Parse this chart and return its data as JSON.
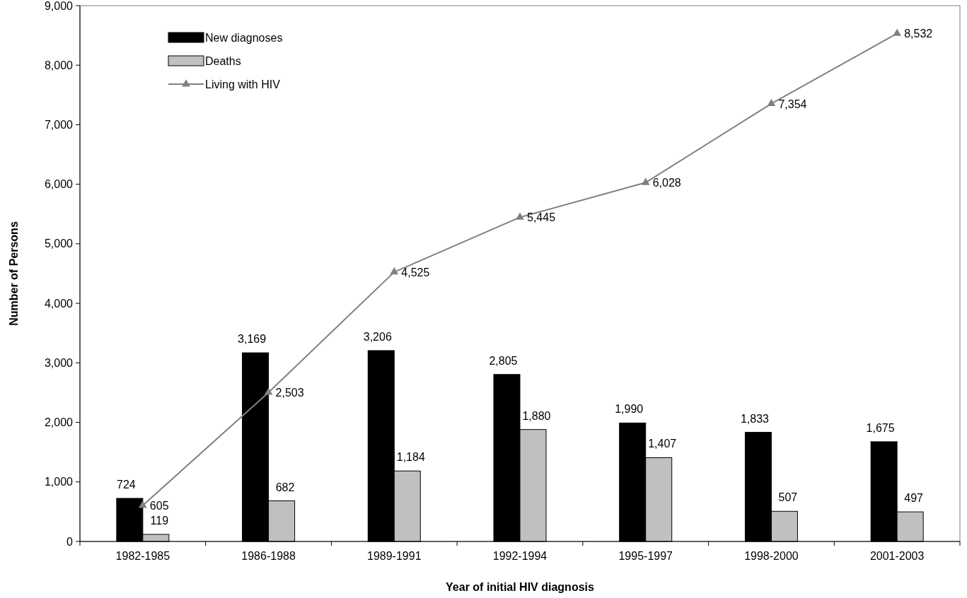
{
  "chart_data": {
    "type": "bar",
    "xlabel": "Year of initial HIV diagnosis",
    "ylabel": "Number of Persons",
    "categories": [
      "1982-1985",
      "1986-1988",
      "1989-1991",
      "1992-1994",
      "1995-1997",
      "1998-2000",
      "2001-2003"
    ],
    "series": [
      {
        "name": "New diagnoses",
        "color": "#000000",
        "values": [
          724,
          3169,
          3206,
          2805,
          1990,
          1833,
          1675
        ],
        "value_labels": [
          "724",
          "3,169",
          "3,206",
          "2,805",
          "1,990",
          "1,833",
          "1,675"
        ]
      },
      {
        "name": "Deaths",
        "color": "#c0c0c0",
        "values": [
          119,
          682,
          1184,
          1880,
          1407,
          507,
          497
        ],
        "value_labels": [
          "119",
          "682",
          "1,184",
          "1,880",
          "1,407",
          "507",
          "497"
        ]
      },
      {
        "name": "Living with HIV",
        "type": "line",
        "color": "#808080",
        "marker": "triangle",
        "values": [
          605,
          2503,
          4525,
          5445,
          6028,
          7354,
          8532
        ],
        "value_labels": [
          "605",
          "2,503",
          "4,525",
          "5,445",
          "6,028",
          "7,354",
          "8,532"
        ]
      }
    ],
    "ylim": [
      0,
      9000
    ],
    "yticks": [
      {
        "value": 0,
        "label": "0"
      },
      {
        "value": 1000,
        "label": "1,000"
      },
      {
        "value": 2000,
        "label": "2,000"
      },
      {
        "value": 3000,
        "label": "3,000"
      },
      {
        "value": 4000,
        "label": "4,000"
      },
      {
        "value": 5000,
        "label": "5,000"
      },
      {
        "value": 6000,
        "label": "6,000"
      },
      {
        "value": 7000,
        "label": "7,000"
      },
      {
        "value": 8000,
        "label": "8,000"
      },
      {
        "value": 9000,
        "label": "9,000"
      }
    ],
    "legend": "top left",
    "grid": false
  }
}
